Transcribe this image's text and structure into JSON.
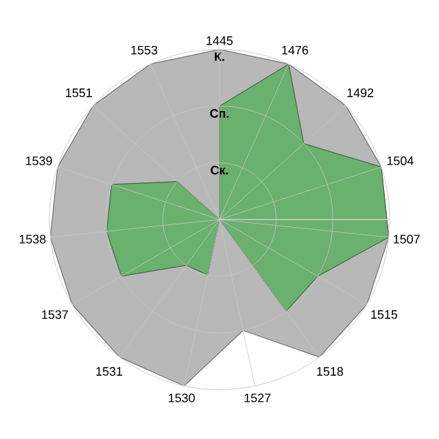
{
  "chart_data": {
    "type": "radar",
    "categories": [
      "1445",
      "1476",
      "1492",
      "1504",
      "1507",
      "1515",
      "1518",
      "1527",
      "1530",
      "1531",
      "1537",
      "1538",
      "1539",
      "1551",
      "1553"
    ],
    "series": [
      {
        "color": "#b8b8b8",
        "values": [
          3,
          3,
          3,
          3,
          3,
          3,
          3,
          2,
          3,
          3,
          3,
          3,
          3,
          3,
          3
        ]
      },
      {
        "color": "#6ab06e",
        "values": [
          2,
          3,
          2,
          3,
          3,
          2,
          2,
          0,
          1,
          1,
          2,
          2,
          2,
          1,
          0
        ]
      }
    ],
    "ylim": [
      0,
      3
    ],
    "yticks": [
      {
        "value": 1,
        "label": "Ск."
      },
      {
        "value": 2,
        "label": "Сп."
      },
      {
        "value": 3,
        "label": "К."
      }
    ],
    "grid": true
  }
}
